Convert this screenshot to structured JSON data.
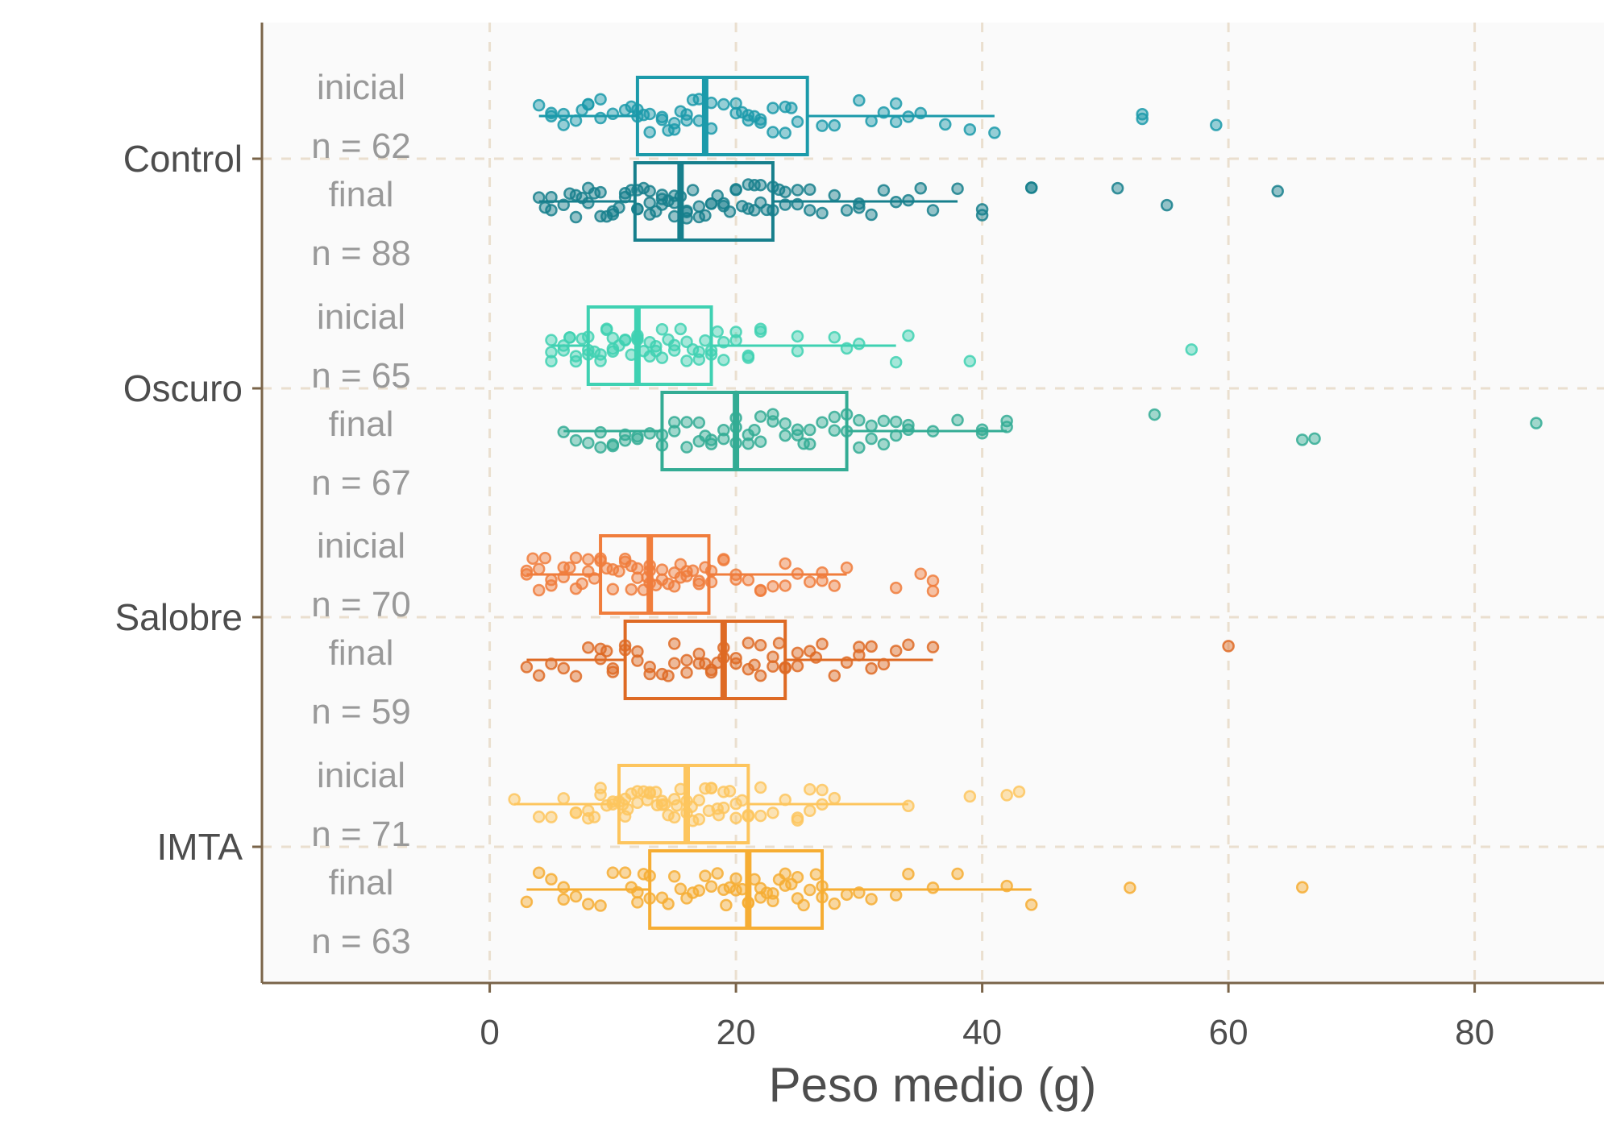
{
  "chart_data": {
    "type": "boxplot",
    "orientation": "horizontal",
    "xlabel": "Peso medio (g)",
    "ylabel": "",
    "xlim": [
      -18.5,
      90.5
    ],
    "x_ticks": [
      0,
      20,
      40,
      60,
      80
    ],
    "grid": true,
    "treatments": [
      "Control",
      "Oscuro",
      "Salobre",
      "IMTA"
    ],
    "series": [
      {
        "treatment": "Control",
        "phase": "inicial",
        "label": "inicial",
        "n_label": "n = 62",
        "color": "#1B9AAA",
        "box": {
          "min": 4,
          "q1": 12,
          "median": 17.5,
          "q3": 25.8,
          "max": 41
        },
        "points": [
          4,
          5,
          5,
          6,
          6,
          7,
          7.5,
          8,
          8,
          9,
          9,
          10,
          11,
          11.5,
          12,
          12,
          12.5,
          13,
          13,
          14,
          14,
          14.5,
          15,
          15,
          15.5,
          16,
          16,
          16.5,
          17,
          17,
          18,
          18,
          19,
          20,
          20,
          20.5,
          21,
          21,
          21.5,
          22,
          22,
          23,
          23,
          24,
          24,
          25,
          27,
          28,
          30,
          31,
          32,
          33,
          33,
          34,
          35,
          37,
          39,
          41,
          53,
          53,
          59,
          24.5
        ]
      },
      {
        "treatment": "Control",
        "phase": "final",
        "label": "final",
        "n_label": "n = 88",
        "color": "#167F8C",
        "box": {
          "min": 4,
          "q1": 11.8,
          "median": 15.5,
          "q3": 23,
          "max": 38
        },
        "points": [
          4,
          4.5,
          5,
          5,
          6,
          6.5,
          7,
          7,
          7.5,
          8,
          8,
          8.5,
          9,
          9,
          9.5,
          10,
          10,
          10.5,
          11,
          11,
          11.5,
          12,
          12,
          12,
          12.5,
          13,
          13,
          13,
          13.5,
          14,
          14,
          14,
          14.5,
          15,
          15,
          15,
          15.5,
          16,
          16,
          16,
          16.5,
          17,
          17,
          17.5,
          18,
          18,
          18.5,
          19,
          19,
          19.5,
          20,
          20,
          20.5,
          21,
          21,
          21.5,
          22,
          22,
          23,
          23,
          23.5,
          24,
          24,
          25,
          25,
          26,
          26,
          27,
          28,
          29,
          30,
          30,
          31,
          32,
          33,
          34,
          35,
          36,
          38,
          40,
          40,
          44,
          44,
          51,
          55,
          64,
          22.5,
          21.5
        ]
      },
      {
        "treatment": "Oscuro",
        "phase": "inicial",
        "label": "inicial",
        "n_label": "n = 65",
        "color": "#3FD1B2",
        "box": {
          "min": 5,
          "q1": 8,
          "median": 12,
          "q3": 18,
          "max": 33
        },
        "points": [
          5,
          5,
          5,
          6,
          6,
          6.5,
          7,
          7,
          7.5,
          8,
          8,
          8,
          8.5,
          9,
          9,
          9.5,
          10,
          10,
          10,
          10.5,
          11,
          11,
          11.5,
          12,
          12,
          12,
          12.5,
          13,
          13,
          13.5,
          14,
          14,
          14.5,
          15,
          15,
          15.5,
          16,
          16,
          16.5,
          17,
          17,
          17.5,
          18,
          18,
          18.5,
          19,
          19,
          20,
          20,
          21,
          21,
          22,
          22,
          25,
          25,
          28,
          29,
          30,
          33,
          34,
          39,
          57,
          6.5,
          9.5,
          13.5
        ]
      },
      {
        "treatment": "Oscuro",
        "phase": "final",
        "label": "final",
        "n_label": "n = 67",
        "color": "#33AC94",
        "box": {
          "min": 6,
          "q1": 14,
          "median": 20,
          "q3": 29,
          "max": 42
        },
        "points": [
          6,
          7,
          8,
          9,
          9,
          10,
          10,
          11,
          11,
          12,
          12,
          13,
          14,
          14,
          15,
          15,
          16,
          16,
          17,
          17,
          18,
          18,
          19,
          19,
          20,
          20,
          20,
          21,
          21,
          22,
          22,
          23,
          23,
          24,
          24,
          25,
          25,
          26,
          26,
          27,
          28,
          28,
          29,
          29,
          30,
          30,
          31,
          31,
          32,
          32,
          33,
          33,
          34,
          34,
          36,
          38,
          40,
          40,
          42,
          42,
          54,
          66,
          67,
          85,
          17.5,
          21.5,
          25.5
        ]
      },
      {
        "treatment": "Salobre",
        "phase": "inicial",
        "label": "inicial",
        "n_label": "n = 70",
        "color": "#F07D3C",
        "box": {
          "min": 3,
          "q1": 9,
          "median": 13,
          "q3": 17.8,
          "max": 29
        },
        "points": [
          3,
          3,
          3.5,
          4,
          4,
          4.5,
          5,
          5,
          6,
          6,
          6.5,
          7,
          7,
          7.5,
          8,
          8,
          8.5,
          9,
          9,
          9.5,
          10,
          10,
          10.5,
          11,
          11,
          11.5,
          12,
          12,
          12.5,
          13,
          13,
          13,
          13.5,
          14,
          14,
          14.5,
          15,
          15,
          15.5,
          16,
          16,
          16.5,
          17,
          17,
          17.5,
          18,
          18,
          19,
          19,
          20,
          20,
          21,
          22,
          22,
          23,
          24,
          24,
          25,
          26,
          27,
          27,
          28,
          29,
          33,
          35,
          36,
          36,
          11.5,
          15.5,
          12.8
        ]
      },
      {
        "treatment": "Salobre",
        "phase": "final",
        "label": "final",
        "n_label": "n = 59",
        "color": "#DE6A24",
        "box": {
          "min": 3,
          "q1": 11,
          "median": 19,
          "q3": 24,
          "max": 36
        },
        "points": [
          3,
          4,
          5,
          6,
          7,
          8,
          9,
          9,
          10,
          10,
          11,
          11,
          12,
          12,
          13,
          14,
          15,
          15,
          16,
          16,
          17,
          17,
          18,
          18,
          19,
          19,
          20,
          20,
          21,
          21,
          22,
          22,
          23,
          23,
          24,
          24,
          25,
          25,
          26,
          27,
          28,
          29,
          30,
          30,
          31,
          31,
          32,
          33,
          34,
          36,
          60,
          13,
          17.5,
          21.5,
          9.5,
          14.5,
          18.5,
          26.5,
          23.5
        ]
      },
      {
        "treatment": "IMTA",
        "phase": "inicial",
        "label": "inicial",
        "n_label": "n = 71",
        "color": "#FDC55E",
        "box": {
          "min": 2,
          "q1": 10.5,
          "median": 16,
          "q3": 21,
          "max": 34
        },
        "points": [
          2,
          4,
          5,
          6,
          7,
          7,
          8,
          8,
          8.5,
          9,
          9,
          9.5,
          10,
          10,
          10.5,
          11,
          11,
          11.5,
          12,
          12,
          12.5,
          13,
          13,
          13.5,
          14,
          14,
          14.5,
          15,
          15,
          15.5,
          16,
          16,
          16.5,
          17,
          17,
          17.5,
          18,
          18,
          18.5,
          19,
          19,
          19.5,
          20,
          20,
          21,
          21,
          22,
          22,
          23,
          24,
          25,
          25,
          26,
          26,
          27,
          27,
          28,
          34,
          39,
          42,
          43,
          12.8,
          15.2,
          17.8,
          20.5,
          10.8,
          13.6,
          16.4,
          18.6,
          14.2,
          11.2
        ]
      },
      {
        "treatment": "IMTA",
        "phase": "final",
        "label": "final",
        "n_label": "n = 63",
        "color": "#F6AD33",
        "box": {
          "min": 3,
          "q1": 13,
          "median": 21,
          "q3": 27,
          "max": 44
        },
        "points": [
          3,
          4,
          5,
          6,
          6,
          7,
          8,
          9,
          10,
          11,
          12,
          12,
          13,
          13,
          14,
          15,
          16,
          17,
          18,
          19,
          20,
          20,
          21,
          21,
          22,
          22,
          23,
          23,
          24,
          24,
          25,
          25,
          26,
          27,
          27,
          28,
          29,
          30,
          31,
          33,
          34,
          36,
          38,
          42,
          44,
          52,
          66,
          18.5,
          19.5,
          22.5,
          16.5,
          14.5,
          26.5,
          24.5,
          11.5,
          20.5,
          17.5,
          23.5,
          25.5,
          15.5,
          21.5,
          19.2,
          12.5
        ]
      }
    ]
  }
}
